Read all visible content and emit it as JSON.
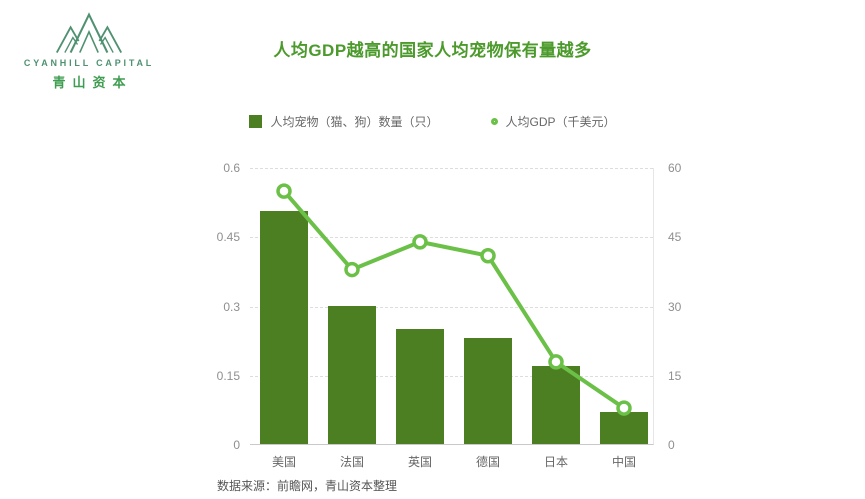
{
  "logo": {
    "brand_en": "CYANHILL CAPITAL",
    "brand_cn": "青山资本"
  },
  "title": "人均GDP越高的国家人均宠物保有量越多",
  "footer": "数据来源：前瞻网，青山资本整理",
  "colors": {
    "bar": "#4c7e22",
    "line": "#6bc047",
    "title": "#4c9a2c",
    "logo_en": "#4f9171",
    "logo_cn": "#3f9d51",
    "axis_text": "#8f8f8f",
    "category_text": "#666666",
    "gridline": "#dddddd"
  },
  "chart_data": {
    "type": "bar",
    "subtype": "bar+line combo, dual axis",
    "title": "人均GDP越高的国家人均宠物保有量越多",
    "categories": [
      "美国",
      "法国",
      "英国",
      "德国",
      "日本",
      "中国"
    ],
    "series": [
      {
        "name": "人均宠物（猫、狗）数量（只）",
        "type": "bar",
        "axis": "left",
        "values": [
          0.505,
          0.3,
          0.25,
          0.23,
          0.17,
          0.07
        ]
      },
      {
        "name": "人均GDP（千美元）",
        "type": "line",
        "axis": "right",
        "values": [
          55,
          38,
          44,
          41,
          18,
          8
        ]
      }
    ],
    "left_axis": {
      "min": 0,
      "max": 0.6,
      "tick_values": [
        0,
        0.15,
        0.3,
        0.45,
        0.6
      ],
      "tick_labels": [
        "0",
        "0.15",
        "0.3",
        "0.45",
        "0.6"
      ]
    },
    "right_axis": {
      "min": 0,
      "max": 60,
      "tick_values": [
        0,
        15,
        30,
        45,
        60
      ],
      "tick_labels": [
        "0",
        "15",
        "30",
        "45",
        "60"
      ]
    },
    "grid": true,
    "legend_position": "top"
  }
}
